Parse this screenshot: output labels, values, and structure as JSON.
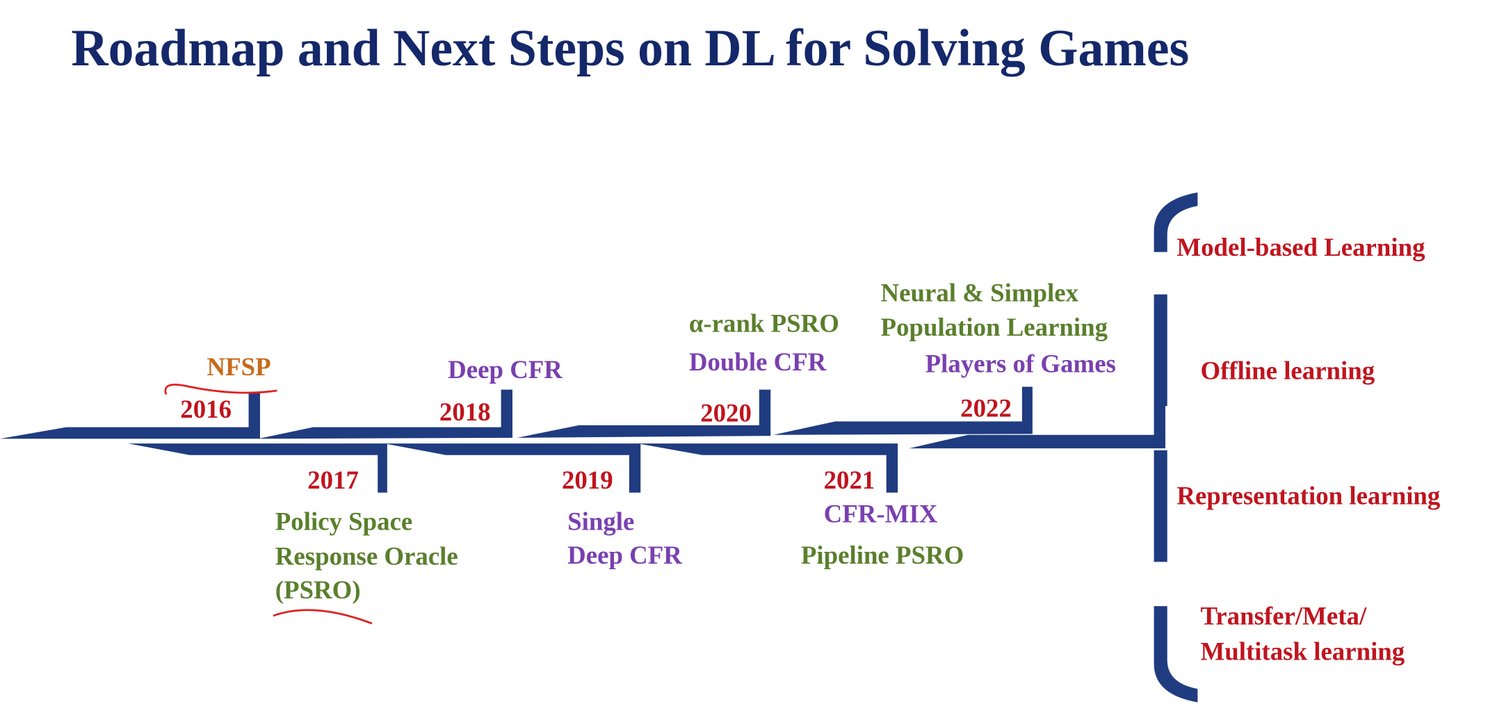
{
  "title": "Roadmap and Next Steps on DL  for Solving Games",
  "timeline": [
    {
      "year": "2016",
      "items": [
        "NFSP"
      ]
    },
    {
      "year": "2017",
      "items": [
        "Policy Space",
        "Response Oracle",
        "(PSRO)"
      ]
    },
    {
      "year": "2018",
      "items": [
        "Deep CFR"
      ]
    },
    {
      "year": "2019",
      "items": [
        "Single",
        "Deep CFR"
      ]
    },
    {
      "year": "2020",
      "items": [
        "α-rank PSRO",
        "Double CFR"
      ]
    },
    {
      "year": "2021",
      "items": [
        "CFR-MIX",
        "Pipeline PSRO"
      ]
    },
    {
      "year": "2022",
      "items": [
        "Neural & Simplex",
        "Population Learning",
        "Players of Games"
      ]
    }
  ],
  "next_steps": [
    [
      "Model-based Learning"
    ],
    [
      "Offline learning"
    ],
    [
      "Representation learning"
    ],
    [
      "Transfer/Meta/",
      "Multitask learning"
    ]
  ]
}
